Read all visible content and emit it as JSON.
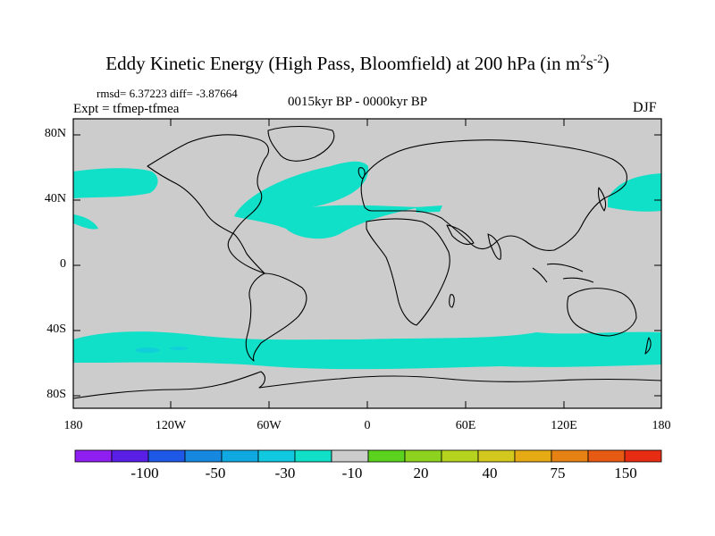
{
  "title": "Eddy Kinetic Energy (High Pass, Bloomfield) at 200 hPa (in m",
  "title_unit_sup1": "2",
  "title_unit_mid": "s",
  "title_unit_sup2": "-2",
  "title_end": ")",
  "stats_line": "rmsd= 6.37223 diff= -3.87664",
  "experiment_label": "Expt = tfmep-tfmea",
  "period_label": "0015kyr BP - 0000kyr BP",
  "season_label": "DJF",
  "y_axis_ticks": [
    "80N",
    "40N",
    "0",
    "40S",
    "80S"
  ],
  "x_axis_ticks": [
    "180",
    "120W",
    "60W",
    "0",
    "60E",
    "120E",
    "180"
  ],
  "colorbar": {
    "colors": [
      "#8f1ff0",
      "#5a1fe6",
      "#1e58e6",
      "#1688e0",
      "#10a8e0",
      "#10c8e0",
      "#10e0c8",
      "#cccccc",
      "#5ad21e",
      "#8cd21e",
      "#b4d21e",
      "#d2c81e",
      "#e6aa14",
      "#e68214",
      "#e65a14",
      "#e62d14"
    ],
    "labels": [
      "-100",
      "-50",
      "-30",
      "-10",
      "20",
      "40",
      "75",
      "150"
    ]
  },
  "map": {
    "background_color": "#cccccc",
    "band_color": "#10e0c8",
    "coast_color": "#000000"
  }
}
